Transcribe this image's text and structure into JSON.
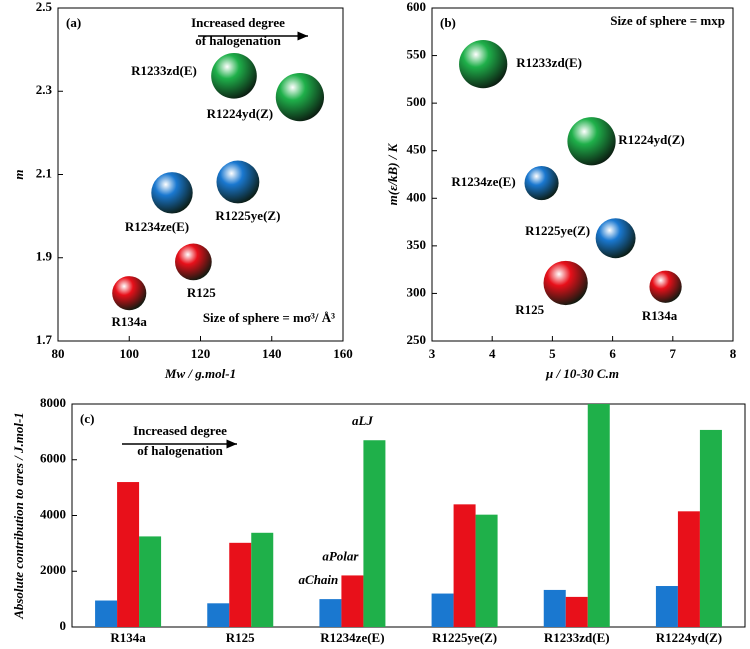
{
  "chart_data": [
    {
      "type": "scatter",
      "panel_label": "(a)",
      "x_label": "Mw /  g.mol-1",
      "y_label": "m",
      "annotation": [
        "Increased degree",
        "of halogenation"
      ],
      "size_note": "Size of sphere = mσ³/ Å³",
      "xlim": [
        80,
        160
      ],
      "xticks": [
        80,
        100,
        120,
        140,
        160
      ],
      "ylim": [
        1.7,
        2.5
      ],
      "yticks": [
        1.7,
        1.9,
        2.1,
        2.3,
        2.5
      ],
      "series": [
        {
          "color": "#e8101a",
          "labels": [
            "R134a",
            "R125"
          ],
          "x": [
            100,
            118
          ],
          "values": [
            1.815,
            1.89
          ],
          "sizes": [
            95,
            110
          ]
        },
        {
          "color": "#1a78d0",
          "labels": [
            "R1234ze(E)",
            "R1225ye(Z)"
          ],
          "x": [
            112,
            130.5
          ],
          "values": [
            2.056,
            2.082
          ],
          "sizes": [
            140,
            150
          ]
        },
        {
          "color": "#1fb04a",
          "labels": [
            "R1233zd(E)",
            "R1224yd(Z)"
          ],
          "x": [
            129.4,
            147.9
          ],
          "values": [
            2.337,
            2.286
          ],
          "sizes": [
            170,
            190
          ]
        }
      ]
    },
    {
      "type": "scatter",
      "panel_label": "(b)",
      "x_label": "μ /  10-30 C.m",
      "y_label": "m(ε/kB) / K",
      "size_note": "Size of sphere = mxp",
      "xlim": [
        3,
        8
      ],
      "xticks": [
        3,
        4,
        5,
        6,
        7,
        8
      ],
      "ylim": [
        250,
        600
      ],
      "yticks": [
        250,
        300,
        350,
        400,
        450,
        500,
        550,
        600
      ],
      "series": [
        {
          "color": "#e8101a",
          "labels": [
            "R125",
            "R134a"
          ],
          "x": [
            5.22,
            6.88
          ],
          "values": [
            311,
            307
          ],
          "sizes": [
            160,
            85
          ]
        },
        {
          "color": "#1a78d0",
          "labels": [
            "R1234ze(E)",
            "R1225ye(Z)"
          ],
          "x": [
            4.82,
            6.05
          ],
          "values": [
            416,
            358
          ],
          "sizes": [
            95,
            130
          ]
        },
        {
          "color": "#1fb04a",
          "labels": [
            "R1233zd(E)",
            "R1224yd(Z)"
          ],
          "x": [
            3.85,
            5.65
          ],
          "values": [
            541,
            460
          ],
          "sizes": [
            190,
            190
          ]
        }
      ]
    },
    {
      "type": "bar",
      "panel_label": "(c)",
      "y_label": "Absolute contribution to ares / J.mol-1",
      "annotation": [
        "Increased degree",
        "of halogenation"
      ],
      "categories": [
        "R134a",
        "R125",
        "R1234ze(E)",
        "R1225ye(Z)",
        "R1233zd(E)",
        "R1224yd(Z)"
      ],
      "ylim": [
        0,
        8000
      ],
      "yticks": [
        0,
        2000,
        4000,
        6000,
        8000
      ],
      "series": [
        {
          "name": "aChain",
          "color": "#1a78d0",
          "values": [
            950,
            850,
            1000,
            1200,
            1330,
            1470
          ]
        },
        {
          "name": "aPolar",
          "color": "#e8101a",
          "values": [
            5200,
            3020,
            1850,
            4400,
            1080,
            4150
          ]
        },
        {
          "name": "aLJ",
          "color": "#1fb04a",
          "values": [
            3250,
            3380,
            6700,
            4030,
            8000,
            7070
          ]
        }
      ]
    }
  ]
}
